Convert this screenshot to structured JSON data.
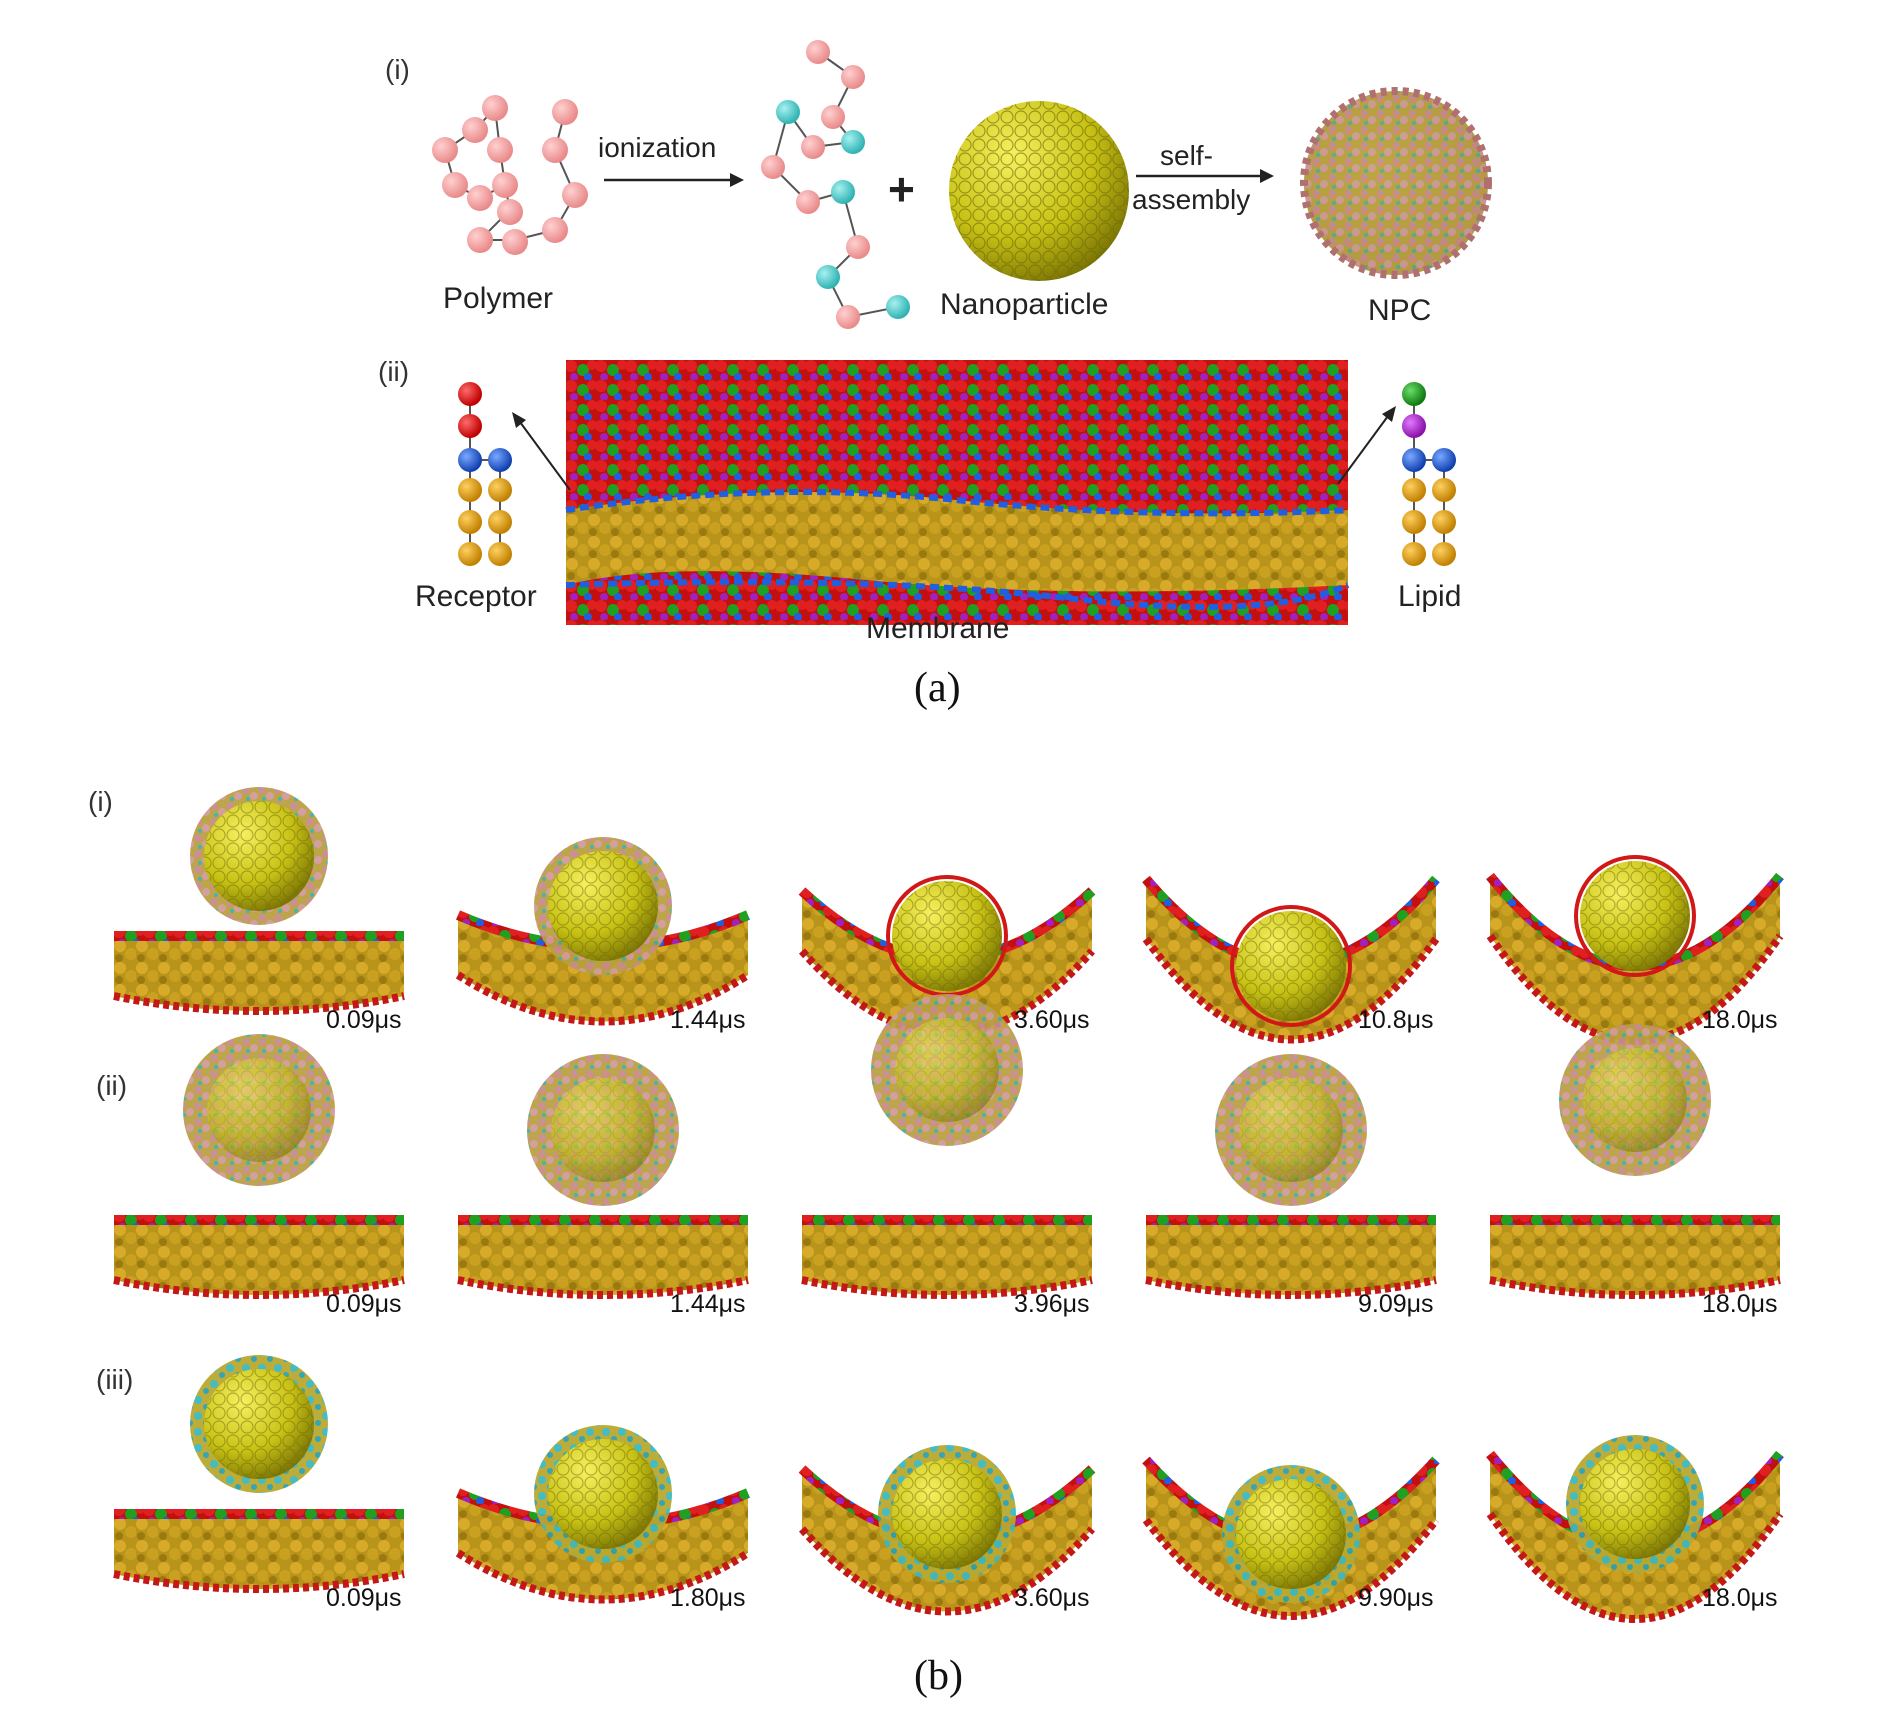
{
  "panel_a": {
    "caption": "(a)",
    "row_i": {
      "roman": "(i)",
      "polymer_label": "Polymer",
      "ionization_label": "ionization",
      "plus": "+",
      "nanoparticle_label": "Nanoparticle",
      "self_assembly_line1": "self-",
      "self_assembly_line2": "assembly",
      "npc_label": "NPC"
    },
    "row_ii": {
      "roman": "(ii)",
      "receptor_label": "Receptor",
      "membrane_label": "Membrane",
      "lipid_label": "Lipid"
    },
    "colors": {
      "bead_pink": "#f4a0a0",
      "bead_cyan": "#4cc9c9",
      "gold_np": "#c8c216",
      "head_red": "#e01818",
      "head_green": "#1a9a1a",
      "head_blue": "#1f5fe0",
      "head_purple": "#b020d0",
      "tail_orange": "#e0a010",
      "membrane_gold": "#b8941a"
    }
  },
  "panel_b": {
    "caption": "(b)",
    "rows": [
      {
        "roman": "(i)",
        "times": [
          "0.09μs",
          "1.44μs",
          "3.60μs",
          "10.8μs",
          "18.0μs"
        ]
      },
      {
        "roman": "(ii)",
        "times": [
          "0.09μs",
          "1.44μs",
          "3.96μs",
          "9.09μs",
          "18.0μs"
        ]
      },
      {
        "roman": "(iii)",
        "times": [
          "0.09μs",
          "1.80μs",
          "3.60μs",
          "9.90μs",
          "18.0μs"
        ]
      }
    ]
  }
}
